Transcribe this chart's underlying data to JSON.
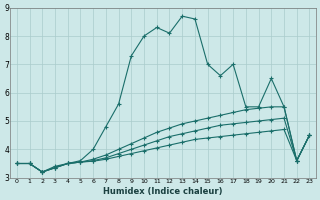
{
  "xlabel": "Humidex (Indice chaleur)",
  "ylabel": "",
  "bg_color": "#cde8e8",
  "grid_color": "#aacccc",
  "line_color": "#1a6e6a",
  "xlim": [
    -0.5,
    23.5
  ],
  "ylim": [
    3,
    9
  ],
  "xtick_labels": [
    "0",
    "1",
    "2",
    "3",
    "4",
    "5",
    "6",
    "7",
    "8",
    "9",
    "10",
    "11",
    "12",
    "13",
    "14",
    "15",
    "16",
    "17",
    "18",
    "19",
    "20",
    "21",
    "22",
    "23"
  ],
  "yticks": [
    3,
    4,
    5,
    6,
    7,
    8,
    9
  ],
  "series": [
    [
      3.5,
      3.5,
      3.2,
      3.4,
      3.5,
      3.6,
      4.0,
      4.8,
      5.6,
      7.3,
      8.0,
      8.3,
      8.1,
      8.7,
      8.6,
      7.0,
      6.6,
      7.0,
      5.5,
      5.5,
      6.5,
      5.5,
      3.6,
      4.5
    ],
    [
      3.5,
      3.5,
      3.2,
      3.35,
      3.5,
      3.55,
      3.65,
      3.8,
      4.0,
      4.2,
      4.4,
      4.6,
      4.75,
      4.9,
      5.0,
      5.1,
      5.2,
      5.3,
      5.4,
      5.45,
      5.5,
      5.5,
      3.6,
      4.5
    ],
    [
      3.5,
      3.5,
      3.2,
      3.35,
      3.5,
      3.55,
      3.6,
      3.7,
      3.85,
      4.0,
      4.15,
      4.3,
      4.45,
      4.55,
      4.65,
      4.75,
      4.85,
      4.9,
      4.95,
      5.0,
      5.05,
      5.1,
      3.6,
      4.5
    ],
    [
      3.5,
      3.5,
      3.2,
      3.35,
      3.5,
      3.55,
      3.58,
      3.65,
      3.75,
      3.85,
      3.95,
      4.05,
      4.15,
      4.25,
      4.35,
      4.4,
      4.45,
      4.5,
      4.55,
      4.6,
      4.65,
      4.7,
      3.6,
      4.5
    ]
  ]
}
